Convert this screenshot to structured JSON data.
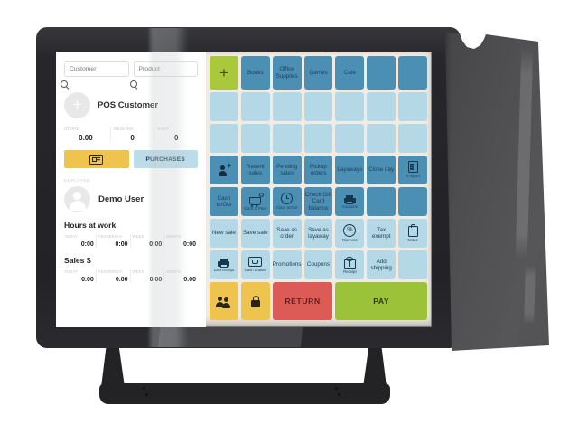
{
  "pos": {
    "search": {
      "customer_placeholder": "Customer",
      "product_placeholder": "Product"
    },
    "customer": {
      "name": "POS Customer",
      "stats": [
        {
          "label": "STORE",
          "value": "0.00"
        },
        {
          "label": "REWARD",
          "value": "0"
        },
        {
          "label": "VISIT",
          "value": "0"
        }
      ],
      "purchases_label": "PURCHASES"
    },
    "employee": {
      "section_label": "EMPLOYEE",
      "name": "Demo User"
    },
    "hours": {
      "title": "Hours at work",
      "cols": [
        {
          "label": "TODAY",
          "value": "0:00"
        },
        {
          "label": "YESTERDAY",
          "value": "0:00"
        },
        {
          "label": "WEEK",
          "value": "0:00"
        },
        {
          "label": "MONTH",
          "value": "0:00"
        }
      ]
    },
    "sales": {
      "title": "Sales $",
      "cols": [
        {
          "label": "TODAY",
          "value": "0.00"
        },
        {
          "label": "YESTERDAY",
          "value": "0.00"
        },
        {
          "label": "WEEK",
          "value": "0.00"
        },
        {
          "label": "MONTH",
          "value": "0.00"
        }
      ]
    },
    "grid": {
      "rows": [
        [
          {
            "icon": "plus",
            "variant": "green",
            "name": "add-category-tile"
          },
          {
            "label": "Books",
            "variant": "dark"
          },
          {
            "label": "Office Supplies",
            "variant": "dark"
          },
          {
            "label": "Games",
            "variant": "dark"
          },
          {
            "label": "Cafe",
            "variant": "dark"
          },
          {
            "variant": "dark"
          },
          {
            "variant": "dark"
          }
        ],
        [
          {
            "variant": "light"
          },
          {
            "variant": "light"
          },
          {
            "variant": "light"
          },
          {
            "variant": "light"
          },
          {
            "variant": "light"
          },
          {
            "variant": "light"
          },
          {
            "variant": "light"
          }
        ],
        [
          {
            "variant": "light"
          },
          {
            "variant": "light"
          },
          {
            "variant": "light"
          },
          {
            "variant": "light"
          },
          {
            "variant": "light"
          },
          {
            "variant": "light"
          },
          {
            "variant": "light"
          }
        ],
        [
          {
            "icon": "person-add",
            "variant": "dark",
            "name": "add-customer-tile"
          },
          {
            "label": "Recent sales",
            "variant": "dark"
          },
          {
            "label": "Pending sales",
            "variant": "dark"
          },
          {
            "label": "Pickup orders",
            "variant": "dark"
          },
          {
            "label": "Layaways",
            "variant": "dark"
          },
          {
            "label": "Close day",
            "variant": "dark"
          },
          {
            "icon": "report",
            "sub": "X-report",
            "variant": "dark"
          }
        ],
        [
          {
            "label": "Cash In/Out",
            "variant": "dark"
          },
          {
            "icon": "stock",
            "sub": "Stock & Price",
            "variant": "dark"
          },
          {
            "icon": "clock",
            "sub": "Clock In/Out",
            "variant": "dark"
          },
          {
            "label": "Check Gift Card balance",
            "variant": "dark"
          },
          {
            "icon": "printer",
            "sub": "Coupons",
            "variant": "dark"
          },
          {
            "variant": "dark"
          },
          {
            "variant": "dark"
          }
        ],
        [
          {
            "label": "New sale",
            "variant": "light"
          },
          {
            "label": "Save sale",
            "variant": "light"
          },
          {
            "label": "Save as order",
            "variant": "light"
          },
          {
            "label": "Save as layaway",
            "variant": "light"
          },
          {
            "icon": "percent",
            "sub": "Discount",
            "variant": "light"
          },
          {
            "label": "Tax exempt",
            "variant": "light"
          },
          {
            "icon": "notes",
            "sub": "Notes",
            "variant": "light"
          }
        ],
        [
          {
            "icon": "printer",
            "sub": "Last receipt",
            "variant": "light"
          },
          {
            "icon": "drawer",
            "sub": "Cash drawer",
            "variant": "light"
          },
          {
            "label": "Promotions",
            "variant": "light"
          },
          {
            "label": "Coupons",
            "variant": "light"
          },
          {
            "icon": "gift",
            "sub": "Receipt",
            "variant": "light"
          },
          {
            "label": "Add shipping",
            "variant": "light"
          },
          {
            "variant": "light"
          }
        ],
        [
          {
            "icon": "people",
            "variant": "yellow",
            "name": "customers-tile"
          },
          {
            "icon": "lock",
            "variant": "yellow",
            "name": "lock-tile"
          },
          {
            "label": "RETURN",
            "variant": "red",
            "span": 2,
            "name": "return-button"
          },
          {
            "label": "PAY",
            "variant": "pay",
            "span": 3,
            "name": "pay-button"
          }
        ]
      ]
    },
    "colors": {
      "tile_dark_blue": "#4b8fb5",
      "tile_light_blue": "#b5d8e6",
      "add_green": "#a9c83b",
      "action_yellow": "#eec34e",
      "return_red": "#dc5b56",
      "pay_green": "#9cc23a",
      "label_navy": "#1d3e55",
      "screen_background": "#f0ebe3"
    }
  }
}
